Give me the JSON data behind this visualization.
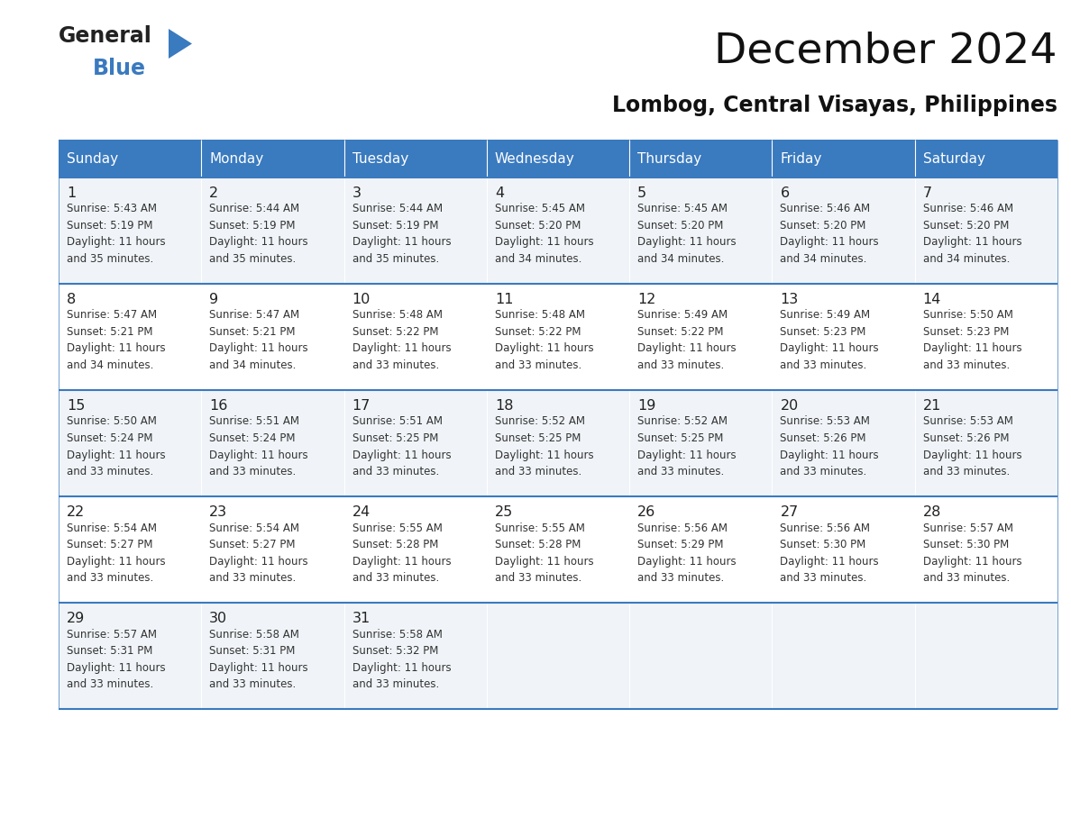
{
  "title": "December 2024",
  "subtitle": "Lombog, Central Visayas, Philippines",
  "header_color": "#3a7abf",
  "header_text_color": "#ffffff",
  "row_colors": [
    "#f0f4f8",
    "#ffffff",
    "#f0f4f8",
    "#ffffff",
    "#f0f4f8"
  ],
  "border_color": "#3a7abf",
  "text_color": "#333333",
  "days_of_week": [
    "Sunday",
    "Monday",
    "Tuesday",
    "Wednesday",
    "Thursday",
    "Friday",
    "Saturday"
  ],
  "calendar_data": [
    [
      {
        "day": 1,
        "sunrise": "5:43 AM",
        "sunset": "5:19 PM",
        "daylight": "11 hours and 35 minutes."
      },
      {
        "day": 2,
        "sunrise": "5:44 AM",
        "sunset": "5:19 PM",
        "daylight": "11 hours and 35 minutes."
      },
      {
        "day": 3,
        "sunrise": "5:44 AM",
        "sunset": "5:19 PM",
        "daylight": "11 hours and 35 minutes."
      },
      {
        "day": 4,
        "sunrise": "5:45 AM",
        "sunset": "5:20 PM",
        "daylight": "11 hours and 34 minutes."
      },
      {
        "day": 5,
        "sunrise": "5:45 AM",
        "sunset": "5:20 PM",
        "daylight": "11 hours and 34 minutes."
      },
      {
        "day": 6,
        "sunrise": "5:46 AM",
        "sunset": "5:20 PM",
        "daylight": "11 hours and 34 minutes."
      },
      {
        "day": 7,
        "sunrise": "5:46 AM",
        "sunset": "5:20 PM",
        "daylight": "11 hours and 34 minutes."
      }
    ],
    [
      {
        "day": 8,
        "sunrise": "5:47 AM",
        "sunset": "5:21 PM",
        "daylight": "11 hours and 34 minutes."
      },
      {
        "day": 9,
        "sunrise": "5:47 AM",
        "sunset": "5:21 PM",
        "daylight": "11 hours and 34 minutes."
      },
      {
        "day": 10,
        "sunrise": "5:48 AM",
        "sunset": "5:22 PM",
        "daylight": "11 hours and 33 minutes."
      },
      {
        "day": 11,
        "sunrise": "5:48 AM",
        "sunset": "5:22 PM",
        "daylight": "11 hours and 33 minutes."
      },
      {
        "day": 12,
        "sunrise": "5:49 AM",
        "sunset": "5:22 PM",
        "daylight": "11 hours and 33 minutes."
      },
      {
        "day": 13,
        "sunrise": "5:49 AM",
        "sunset": "5:23 PM",
        "daylight": "11 hours and 33 minutes."
      },
      {
        "day": 14,
        "sunrise": "5:50 AM",
        "sunset": "5:23 PM",
        "daylight": "11 hours and 33 minutes."
      }
    ],
    [
      {
        "day": 15,
        "sunrise": "5:50 AM",
        "sunset": "5:24 PM",
        "daylight": "11 hours and 33 minutes."
      },
      {
        "day": 16,
        "sunrise": "5:51 AM",
        "sunset": "5:24 PM",
        "daylight": "11 hours and 33 minutes."
      },
      {
        "day": 17,
        "sunrise": "5:51 AM",
        "sunset": "5:25 PM",
        "daylight": "11 hours and 33 minutes."
      },
      {
        "day": 18,
        "sunrise": "5:52 AM",
        "sunset": "5:25 PM",
        "daylight": "11 hours and 33 minutes."
      },
      {
        "day": 19,
        "sunrise": "5:52 AM",
        "sunset": "5:25 PM",
        "daylight": "11 hours and 33 minutes."
      },
      {
        "day": 20,
        "sunrise": "5:53 AM",
        "sunset": "5:26 PM",
        "daylight": "11 hours and 33 minutes."
      },
      {
        "day": 21,
        "sunrise": "5:53 AM",
        "sunset": "5:26 PM",
        "daylight": "11 hours and 33 minutes."
      }
    ],
    [
      {
        "day": 22,
        "sunrise": "5:54 AM",
        "sunset": "5:27 PM",
        "daylight": "11 hours and 33 minutes."
      },
      {
        "day": 23,
        "sunrise": "5:54 AM",
        "sunset": "5:27 PM",
        "daylight": "11 hours and 33 minutes."
      },
      {
        "day": 24,
        "sunrise": "5:55 AM",
        "sunset": "5:28 PM",
        "daylight": "11 hours and 33 minutes."
      },
      {
        "day": 25,
        "sunrise": "5:55 AM",
        "sunset": "5:28 PM",
        "daylight": "11 hours and 33 minutes."
      },
      {
        "day": 26,
        "sunrise": "5:56 AM",
        "sunset": "5:29 PM",
        "daylight": "11 hours and 33 minutes."
      },
      {
        "day": 27,
        "sunrise": "5:56 AM",
        "sunset": "5:30 PM",
        "daylight": "11 hours and 33 minutes."
      },
      {
        "day": 28,
        "sunrise": "5:57 AM",
        "sunset": "5:30 PM",
        "daylight": "11 hours and 33 minutes."
      }
    ],
    [
      {
        "day": 29,
        "sunrise": "5:57 AM",
        "sunset": "5:31 PM",
        "daylight": "11 hours and 33 minutes."
      },
      {
        "day": 30,
        "sunrise": "5:58 AM",
        "sunset": "5:31 PM",
        "daylight": "11 hours and 33 minutes."
      },
      {
        "day": 31,
        "sunrise": "5:58 AM",
        "sunset": "5:32 PM",
        "daylight": "11 hours and 33 minutes."
      },
      null,
      null,
      null,
      null
    ]
  ],
  "logo_text_general": "General",
  "logo_text_blue": "Blue",
  "logo_triangle_color": "#3a7abf",
  "fig_width": 11.88,
  "fig_height": 9.18,
  "dpi": 100
}
